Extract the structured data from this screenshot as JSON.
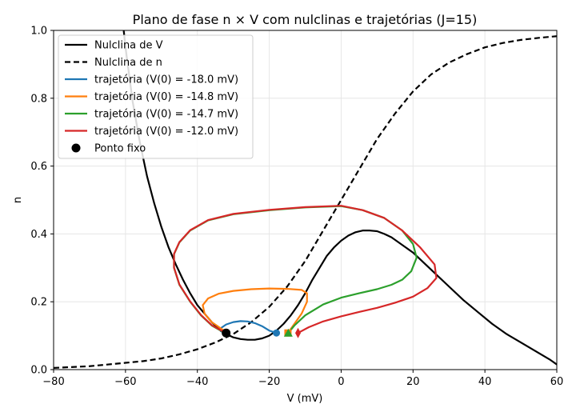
{
  "chart_data": {
    "type": "line",
    "title": "Plano de fase n × V com nulclinas e trajetórias (J=15)",
    "xlabel": "V (mV)",
    "ylabel": "n",
    "xlim": [
      -80,
      60
    ],
    "ylim": [
      0,
      1
    ],
    "xticks": [
      -80,
      -60,
      -40,
      -20,
      0,
      20,
      40,
      60
    ],
    "yticks": [
      0.0,
      0.2,
      0.4,
      0.6,
      0.8,
      1.0
    ],
    "xtick_labels": [
      "−80",
      "−60",
      "−40",
      "−20",
      "0",
      "20",
      "40",
      "60"
    ],
    "ytick_labels": [
      "0.0",
      "0.2",
      "0.4",
      "0.6",
      "0.8",
      "1.0"
    ],
    "grid": true,
    "legend_position": "top-left",
    "series": [
      {
        "name": "Nulclina de V",
        "color": "#000000",
        "style": "solid",
        "points": [
          [
            -60.5,
            1.0
          ],
          [
            -60,
            0.95
          ],
          [
            -58,
            0.79
          ],
          [
            -56,
            0.67
          ],
          [
            -54,
            0.57
          ],
          [
            -52,
            0.49
          ],
          [
            -50,
            0.42
          ],
          [
            -48,
            0.36
          ],
          [
            -46,
            0.31
          ],
          [
            -44,
            0.265
          ],
          [
            -42,
            0.225
          ],
          [
            -40,
            0.19
          ],
          [
            -38,
            0.165
          ],
          [
            -36,
            0.14
          ],
          [
            -34,
            0.12
          ],
          [
            -32,
            0.105
          ],
          [
            -30,
            0.095
          ],
          [
            -28,
            0.09
          ],
          [
            -26,
            0.088
          ],
          [
            -24,
            0.088
          ],
          [
            -22,
            0.092
          ],
          [
            -20,
            0.1
          ],
          [
            -18,
            0.115
          ],
          [
            -16,
            0.135
          ],
          [
            -14,
            0.16
          ],
          [
            -12,
            0.19
          ],
          [
            -10,
            0.225
          ],
          [
            -8,
            0.265
          ],
          [
            -6,
            0.3
          ],
          [
            -4,
            0.335
          ],
          [
            -2,
            0.36
          ],
          [
            0,
            0.38
          ],
          [
            2,
            0.395
          ],
          [
            4,
            0.405
          ],
          [
            6,
            0.41
          ],
          [
            8,
            0.41
          ],
          [
            10,
            0.408
          ],
          [
            12,
            0.4
          ],
          [
            14,
            0.39
          ],
          [
            16,
            0.375
          ],
          [
            18,
            0.36
          ],
          [
            20,
            0.345
          ],
          [
            22,
            0.325
          ],
          [
            26,
            0.285
          ],
          [
            30,
            0.245
          ],
          [
            34,
            0.205
          ],
          [
            38,
            0.17
          ],
          [
            42,
            0.135
          ],
          [
            46,
            0.105
          ],
          [
            50,
            0.08
          ],
          [
            54,
            0.055
          ],
          [
            58,
            0.03
          ],
          [
            60,
            0.015
          ]
        ]
      },
      {
        "name": "Nulclina de n",
        "color": "#000000",
        "style": "dashed",
        "points": [
          [
            -80,
            0.005
          ],
          [
            -70,
            0.01
          ],
          [
            -60,
            0.02
          ],
          [
            -55,
            0.025
          ],
          [
            -50,
            0.033
          ],
          [
            -45,
            0.045
          ],
          [
            -40,
            0.06
          ],
          [
            -35,
            0.08
          ],
          [
            -30,
            0.105
          ],
          [
            -25,
            0.14
          ],
          [
            -20,
            0.185
          ],
          [
            -15,
            0.245
          ],
          [
            -10,
            0.32
          ],
          [
            -5,
            0.41
          ],
          [
            0,
            0.5
          ],
          [
            5,
            0.59
          ],
          [
            10,
            0.68
          ],
          [
            15,
            0.755
          ],
          [
            20,
            0.82
          ],
          [
            25,
            0.87
          ],
          [
            30,
            0.905
          ],
          [
            35,
            0.93
          ],
          [
            40,
            0.95
          ],
          [
            45,
            0.963
          ],
          [
            50,
            0.972
          ],
          [
            55,
            0.978
          ],
          [
            60,
            0.983
          ]
        ]
      },
      {
        "name": "trajetória (V(0) = -18.0 mV)",
        "color": "#1f77b4",
        "style": "solid",
        "marker": "circle",
        "points": [
          [
            -18,
            0.108
          ],
          [
            -20,
            0.115
          ],
          [
            -22,
            0.128
          ],
          [
            -24,
            0.137
          ],
          [
            -26,
            0.142
          ],
          [
            -28,
            0.143
          ],
          [
            -30,
            0.14
          ],
          [
            -32,
            0.133
          ],
          [
            -33.5,
            0.122
          ],
          [
            -33.5,
            0.113
          ],
          [
            -32,
            0.108
          ]
        ]
      },
      {
        "name": "trajetória (V(0) = -14.8 mV)",
        "color": "#ff7f0e",
        "style": "solid",
        "marker": "square",
        "points": [
          [
            -14.8,
            0.108
          ],
          [
            -13,
            0.135
          ],
          [
            -11,
            0.165
          ],
          [
            -9.5,
            0.2
          ],
          [
            -9.5,
            0.225
          ],
          [
            -11,
            0.235
          ],
          [
            -15,
            0.238
          ],
          [
            -20,
            0.239
          ],
          [
            -25,
            0.237
          ],
          [
            -30,
            0.232
          ],
          [
            -34,
            0.224
          ],
          [
            -37,
            0.21
          ],
          [
            -38.5,
            0.19
          ],
          [
            -38,
            0.165
          ],
          [
            -36,
            0.14
          ],
          [
            -33,
            0.118
          ],
          [
            -32,
            0.108
          ]
        ]
      },
      {
        "name": "trajetória (V(0) = -14.7 mV)",
        "color": "#2ca02c",
        "style": "solid",
        "marker": "triangle",
        "points": [
          [
            -14.7,
            0.108
          ],
          [
            -13,
            0.13
          ],
          [
            -10,
            0.16
          ],
          [
            -5,
            0.192
          ],
          [
            0,
            0.212
          ],
          [
            5,
            0.225
          ],
          [
            10,
            0.237
          ],
          [
            14,
            0.25
          ],
          [
            17,
            0.265
          ],
          [
            19.5,
            0.29
          ],
          [
            21,
            0.33
          ],
          [
            20,
            0.37
          ],
          [
            17,
            0.41
          ],
          [
            12,
            0.447
          ],
          [
            6,
            0.47
          ],
          [
            0,
            0.482
          ],
          [
            -10,
            0.478
          ],
          [
            -20,
            0.47
          ],
          [
            -30,
            0.458
          ],
          [
            -37,
            0.44
          ],
          [
            -42,
            0.41
          ],
          [
            -45,
            0.375
          ],
          [
            -46.5,
            0.34
          ],
          [
            -46.5,
            0.3
          ],
          [
            -45,
            0.25
          ],
          [
            -42,
            0.2
          ],
          [
            -39,
            0.16
          ],
          [
            -36,
            0.13
          ],
          [
            -33,
            0.112
          ],
          [
            -32,
            0.108
          ]
        ]
      },
      {
        "name": "trajetória (V(0) = -12.0 mV)",
        "color": "#d62728",
        "style": "solid",
        "marker": "diamond",
        "points": [
          [
            -12,
            0.108
          ],
          [
            -9,
            0.125
          ],
          [
            -5,
            0.142
          ],
          [
            0,
            0.157
          ],
          [
            5,
            0.17
          ],
          [
            10,
            0.182
          ],
          [
            15,
            0.197
          ],
          [
            20,
            0.215
          ],
          [
            24,
            0.24
          ],
          [
            26.5,
            0.27
          ],
          [
            26,
            0.31
          ],
          [
            22,
            0.36
          ],
          [
            17,
            0.41
          ],
          [
            12,
            0.447
          ],
          [
            6,
            0.47
          ],
          [
            0,
            0.483
          ],
          [
            -10,
            0.479
          ],
          [
            -20,
            0.471
          ],
          [
            -30,
            0.459
          ],
          [
            -37,
            0.441
          ],
          [
            -42,
            0.411
          ],
          [
            -45,
            0.376
          ],
          [
            -46.5,
            0.341
          ],
          [
            -46.5,
            0.301
          ],
          [
            -45,
            0.251
          ],
          [
            -42,
            0.201
          ],
          [
            -39,
            0.161
          ],
          [
            -36,
            0.131
          ],
          [
            -33,
            0.113
          ],
          [
            -32,
            0.108
          ]
        ]
      },
      {
        "name": "Ponto fixo",
        "color": "#000000",
        "style": "marker",
        "marker": "circle",
        "points": [
          [
            -32,
            0.108
          ]
        ]
      }
    ]
  }
}
